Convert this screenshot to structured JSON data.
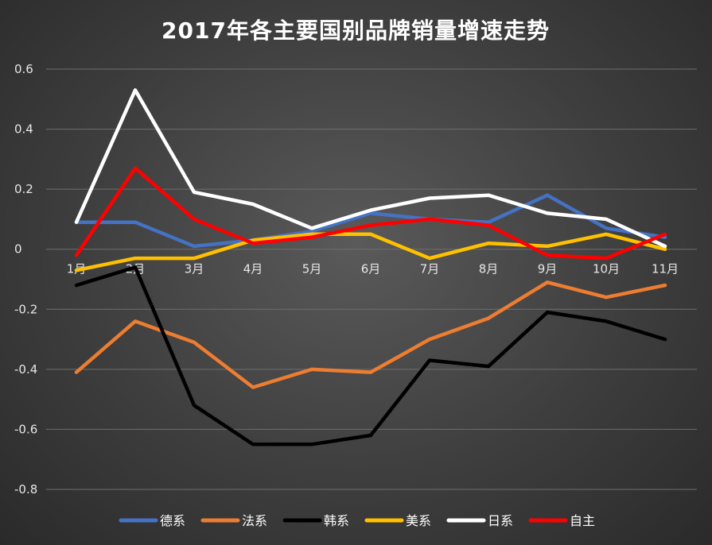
{
  "chart_data": {
    "type": "line",
    "title": "2017年各主要国别品牌销量增速走势",
    "xlabel": "",
    "ylabel": "",
    "categories": [
      "1月",
      "2月",
      "3月",
      "4月",
      "5月",
      "6月",
      "7月",
      "8月",
      "9月",
      "10月",
      "11月"
    ],
    "ylim": [
      -0.8,
      0.6
    ],
    "yticks": [
      "0.6",
      "0.4",
      "0.2",
      "0",
      "-0.2",
      "-0.4",
      "-0.6",
      "-0.8"
    ],
    "grid": true,
    "legend_position": "bottom",
    "series": [
      {
        "name": "德系",
        "color": "#4472C4",
        "values": [
          0.09,
          0.09,
          0.01,
          0.03,
          0.06,
          0.12,
          0.1,
          0.09,
          0.18,
          0.07,
          0.04
        ]
      },
      {
        "name": "法系",
        "color": "#ED7D31",
        "values": [
          -0.41,
          -0.24,
          -0.31,
          -0.46,
          -0.4,
          -0.41,
          -0.3,
          -0.23,
          -0.11,
          -0.16,
          -0.12
        ]
      },
      {
        "name": "韩系",
        "color": "#000000",
        "values": [
          -0.12,
          -0.06,
          -0.52,
          -0.65,
          -0.65,
          -0.62,
          -0.37,
          -0.39,
          -0.21,
          -0.24,
          -0.3
        ]
      },
      {
        "name": "美系",
        "color": "#FFC000",
        "values": [
          -0.07,
          -0.03,
          -0.03,
          0.03,
          0.05,
          0.05,
          -0.03,
          0.02,
          0.01,
          0.05,
          0.0
        ]
      },
      {
        "name": "日系",
        "color": "#FFFFFF",
        "values": [
          0.09,
          0.53,
          0.19,
          0.15,
          0.07,
          0.13,
          0.17,
          0.18,
          0.12,
          0.1,
          0.01
        ]
      },
      {
        "name": "自主",
        "color": "#FF0000",
        "values": [
          -0.02,
          0.27,
          0.1,
          0.02,
          0.04,
          0.08,
          0.1,
          0.08,
          -0.02,
          -0.03,
          0.05
        ]
      }
    ]
  }
}
